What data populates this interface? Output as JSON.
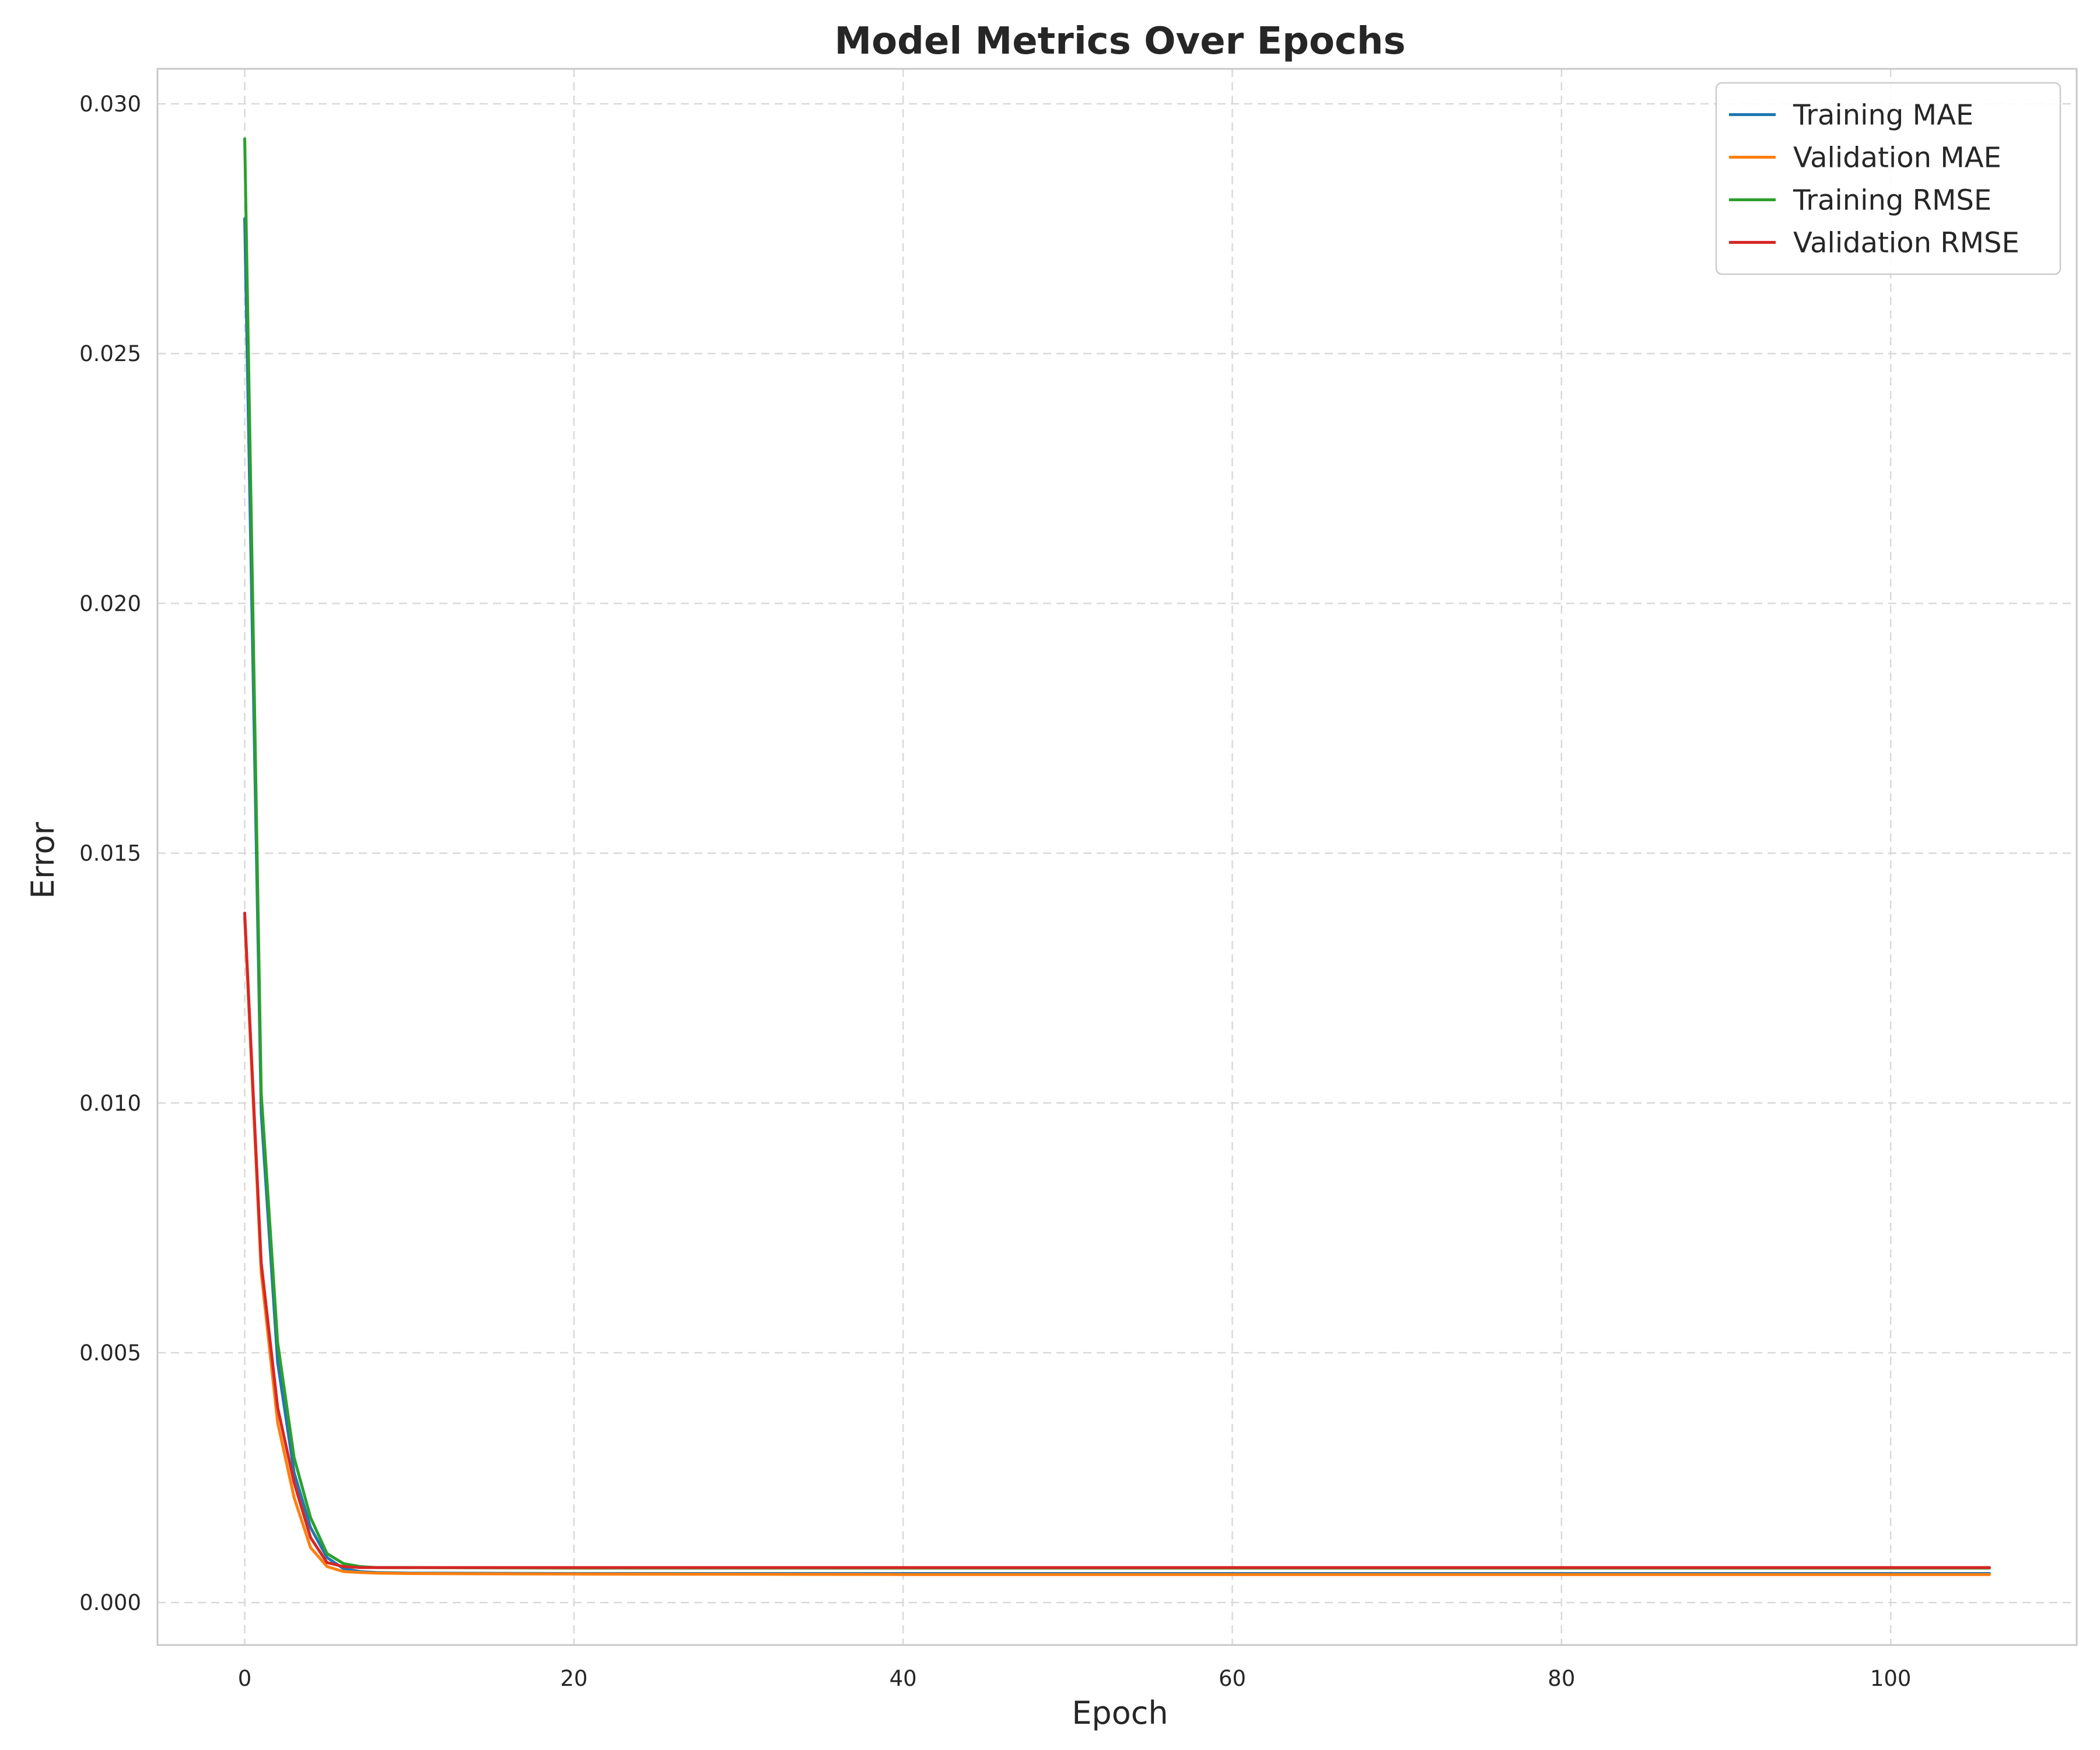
{
  "chart_data": {
    "type": "line",
    "title": "Model Metrics Over Epochs",
    "xlabel": "Epoch",
    "ylabel": "Error",
    "xlim": [
      -5.3,
      111.3
    ],
    "ylim": [
      -0.00085,
      0.0307
    ],
    "xticks": [
      0,
      20,
      40,
      60,
      80,
      100
    ],
    "yticks": [
      0.0,
      0.005,
      0.01,
      0.015,
      0.02,
      0.025,
      0.03
    ],
    "ytick_labels": [
      "0.000",
      "0.005",
      "0.010",
      "0.015",
      "0.020",
      "0.025",
      "0.030"
    ],
    "grid": true,
    "legend": "top-right",
    "series": [
      {
        "name": "Training MAE",
        "color": "#1f77b4",
        "x": [
          0,
          1,
          2,
          3,
          4,
          5,
          6,
          7,
          8,
          10,
          20,
          40,
          60,
          80,
          100,
          106
        ],
        "y": [
          0.0277,
          0.0098,
          0.0048,
          0.0026,
          0.0015,
          0.0009,
          0.00068,
          0.00062,
          0.0006,
          0.00059,
          0.00058,
          0.00058,
          0.00058,
          0.00058,
          0.00058,
          0.00058
        ]
      },
      {
        "name": "Validation MAE",
        "color": "#ff7f0e",
        "x": [
          0,
          1,
          2,
          3,
          4,
          5,
          6,
          7,
          8,
          10,
          20,
          40,
          60,
          80,
          100,
          106
        ],
        "y": [
          0.0137,
          0.0066,
          0.0036,
          0.0021,
          0.0011,
          0.00072,
          0.00062,
          0.0006,
          0.00059,
          0.00058,
          0.00057,
          0.00056,
          0.00056,
          0.00056,
          0.00056,
          0.00056
        ]
      },
      {
        "name": "Training RMSE",
        "color": "#2ca02c",
        "x": [
          0,
          1,
          2,
          3,
          4,
          5,
          6,
          7,
          8,
          10,
          20,
          40,
          60,
          80,
          100,
          106
        ],
        "y": [
          0.0293,
          0.0102,
          0.0052,
          0.0029,
          0.0017,
          0.00098,
          0.00078,
          0.00072,
          0.0007,
          0.0007,
          0.00069,
          0.00069,
          0.00069,
          0.00069,
          0.00069,
          0.00069
        ]
      },
      {
        "name": "Validation RMSE",
        "color": "#d62728",
        "x": [
          0,
          1,
          2,
          3,
          4,
          5,
          6,
          7,
          8,
          10,
          20,
          40,
          60,
          80,
          100,
          106
        ],
        "y": [
          0.0138,
          0.0068,
          0.0039,
          0.0024,
          0.0013,
          0.0008,
          0.00072,
          0.0007,
          0.0007,
          0.0007,
          0.0007,
          0.0007,
          0.0007,
          0.0007,
          0.0007,
          0.0007
        ]
      }
    ]
  },
  "colors": {
    "background": "#ffffff",
    "grid": "#d9d9d9",
    "spine": "#c8c8c8",
    "text": "#262626"
  }
}
